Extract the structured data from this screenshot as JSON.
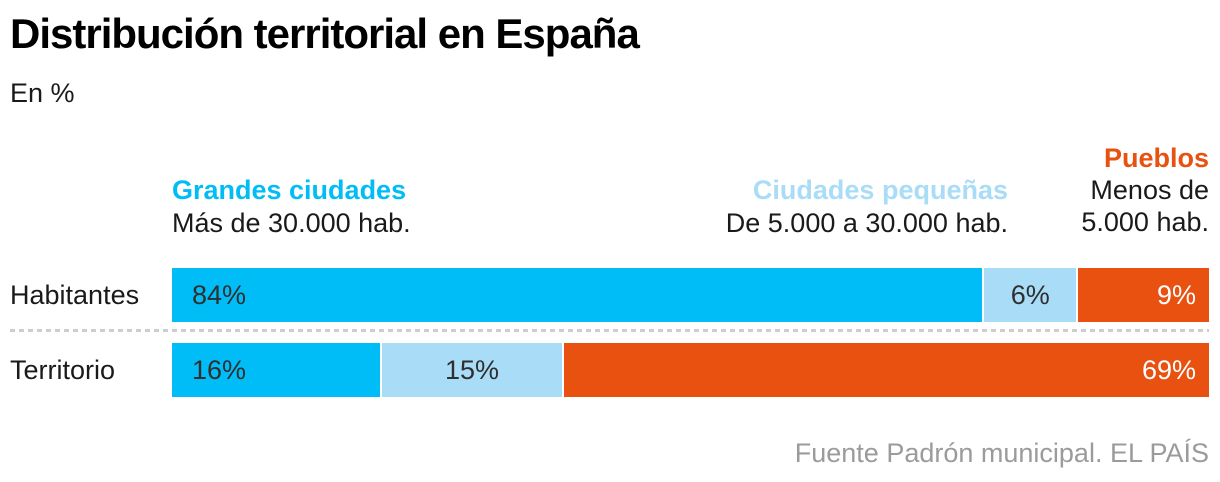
{
  "header": {
    "title": "Distribución territorial en España",
    "subtitle": "En %"
  },
  "legend": {
    "grandes": {
      "label": "Grandes ciudades",
      "description": "Más de 30.000 hab.",
      "color": "#00bdf7"
    },
    "pequenas": {
      "label": "Ciudades pequeñas",
      "description": "De 5.000 a 30.000 hab.",
      "color": "#a9dcf6"
    },
    "pueblos": {
      "label": "Pueblos",
      "description_line1": "Menos de",
      "description_line2": "5.000 hab.",
      "color": "#e8510f"
    }
  },
  "chart_data": {
    "type": "bar",
    "variant": "horizontal-stacked",
    "unit": "%",
    "title": "Distribución territorial en España",
    "subtitle": "En %",
    "categories": [
      "Habitantes",
      "Territorio"
    ],
    "series": [
      {
        "name": "Grandes ciudades (Más de 30.000 hab.)",
        "color": "#00bdf7",
        "values": [
          84,
          16
        ]
      },
      {
        "name": "Ciudades pequeñas (De 5.000 a 30.000 hab.)",
        "color": "#a9dcf6",
        "values": [
          6,
          15
        ]
      },
      {
        "name": "Pueblos (Menos de 5.000 hab.)",
        "color": "#e8510f",
        "values": [
          9,
          69
        ]
      }
    ],
    "xlim": [
      0,
      100
    ],
    "legend_position": "top",
    "value_labels": "inside",
    "grid": false
  },
  "rows": [
    {
      "label": "Habitantes",
      "segments": [
        {
          "text": "84%",
          "value": 84
        },
        {
          "text": "6%",
          "value": 6
        },
        {
          "text": "9%",
          "value": 9
        }
      ]
    },
    {
      "label": "Territorio",
      "segments": [
        {
          "text": "16%",
          "value": 16
        },
        {
          "text": "15%",
          "value": 15
        },
        {
          "text": "69%",
          "value": 69
        }
      ]
    }
  ],
  "footer": {
    "source": "Fuente Padrón municipal. EL PAÍS"
  },
  "palette": {
    "title_text": "#000000",
    "body_text": "#1a1a1a",
    "bar_dark_label": "#2f2f2f",
    "bar_light_label": "#ffffff",
    "separator_dots": "#cdcdcd",
    "source_text": "#9b9b9b",
    "background": "#ffffff"
  }
}
